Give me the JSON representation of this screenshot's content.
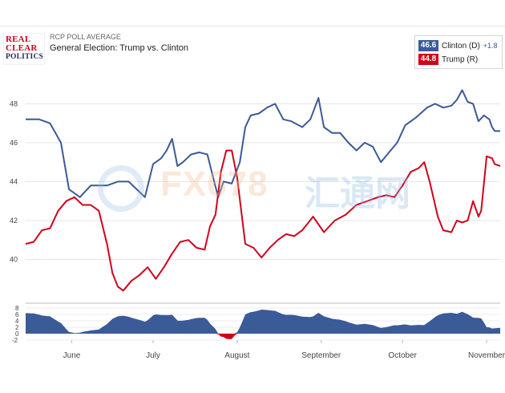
{
  "header": {
    "logo_lines": [
      "REAL",
      "CLEAR",
      "POLITICS"
    ],
    "subtitle": "RCP POLL AVERAGE",
    "title": "General Election: Trump vs. Clinton"
  },
  "legend": {
    "clinton": {
      "value": "46.6",
      "label": "Clinton (D)",
      "diff": "+1.8",
      "color": "#3b5a98"
    },
    "trump": {
      "value": "44.8",
      "label": "Trump (R)",
      "color": "#d0021b"
    }
  },
  "watermark": {
    "left": "FX678",
    "right": "汇通网"
  },
  "chart_data": {
    "type": "line",
    "title": "General Election: Trump vs. Clinton",
    "xlabel": "",
    "ylabel": "",
    "ylim": [
      38,
      49.5
    ],
    "yticks": [
      40,
      42,
      44,
      46,
      48
    ],
    "x_domain": [
      "2016-05-15",
      "2016-11-06"
    ],
    "month_labels": [
      {
        "label": "June",
        "date": "2016-06-01"
      },
      {
        "label": "July",
        "date": "2016-07-01"
      },
      {
        "label": "August",
        "date": "2016-08-01"
      },
      {
        "label": "September",
        "date": "2016-09-01"
      },
      {
        "label": "October",
        "date": "2016-10-01"
      },
      {
        "label": "November",
        "date": "2016-11-01"
      }
    ],
    "grid": true,
    "series": [
      {
        "name": "Clinton (D)",
        "color": "#3b5a98",
        "points": [
          [
            "2016-05-15",
            47.2
          ],
          [
            "2016-05-20",
            47.2
          ],
          [
            "2016-05-24",
            47.0
          ],
          [
            "2016-05-28",
            46.0
          ],
          [
            "2016-05-31",
            43.6
          ],
          [
            "2016-06-04",
            43.2
          ],
          [
            "2016-06-08",
            43.8
          ],
          [
            "2016-06-14",
            43.8
          ],
          [
            "2016-06-18",
            44.0
          ],
          [
            "2016-06-22",
            44.0
          ],
          [
            "2016-06-25",
            43.6
          ],
          [
            "2016-06-28",
            43.2
          ],
          [
            "2016-07-01",
            44.9
          ],
          [
            "2016-07-04",
            45.2
          ],
          [
            "2016-07-06",
            45.6
          ],
          [
            "2016-07-08",
            46.2
          ],
          [
            "2016-07-10",
            44.8
          ],
          [
            "2016-07-12",
            45.0
          ],
          [
            "2016-07-15",
            45.4
          ],
          [
            "2016-07-18",
            45.5
          ],
          [
            "2016-07-21",
            45.4
          ],
          [
            "2016-07-23",
            44.3
          ],
          [
            "2016-07-25",
            43.2
          ],
          [
            "2016-07-27",
            44.0
          ],
          [
            "2016-07-30",
            43.9
          ],
          [
            "2016-08-02",
            45.0
          ],
          [
            "2016-08-04",
            46.8
          ],
          [
            "2016-08-06",
            47.4
          ],
          [
            "2016-08-09",
            47.5
          ],
          [
            "2016-08-12",
            47.8
          ],
          [
            "2016-08-15",
            48.0
          ],
          [
            "2016-08-18",
            47.2
          ],
          [
            "2016-08-21",
            47.1
          ],
          [
            "2016-08-25",
            46.8
          ],
          [
            "2016-08-28",
            47.2
          ],
          [
            "2016-08-31",
            48.3
          ],
          [
            "2016-09-02",
            46.8
          ],
          [
            "2016-09-05",
            46.5
          ],
          [
            "2016-09-08",
            46.5
          ],
          [
            "2016-09-11",
            46.0
          ],
          [
            "2016-09-14",
            45.6
          ],
          [
            "2016-09-17",
            46.0
          ],
          [
            "2016-09-20",
            45.8
          ],
          [
            "2016-09-23",
            45.0
          ],
          [
            "2016-09-26",
            45.5
          ],
          [
            "2016-09-29",
            46.0
          ],
          [
            "2016-10-02",
            46.9
          ],
          [
            "2016-10-06",
            47.3
          ],
          [
            "2016-10-10",
            47.8
          ],
          [
            "2016-10-13",
            48.0
          ],
          [
            "2016-10-16",
            47.8
          ],
          [
            "2016-10-19",
            47.9
          ],
          [
            "2016-10-21",
            48.2
          ],
          [
            "2016-10-23",
            48.7
          ],
          [
            "2016-10-25",
            48.1
          ],
          [
            "2016-10-27",
            48.0
          ],
          [
            "2016-10-29",
            47.1
          ],
          [
            "2016-10-31",
            47.4
          ],
          [
            "2016-11-02",
            47.2
          ],
          [
            "2016-11-03",
            46.8
          ],
          [
            "2016-11-04",
            46.6
          ],
          [
            "2016-11-06",
            46.6
          ]
        ]
      },
      {
        "name": "Trump (R)",
        "color": "#d0021b",
        "points": [
          [
            "2016-05-15",
            40.8
          ],
          [
            "2016-05-18",
            40.9
          ],
          [
            "2016-05-21",
            41.5
          ],
          [
            "2016-05-24",
            41.6
          ],
          [
            "2016-05-27",
            42.5
          ],
          [
            "2016-05-30",
            43.0
          ],
          [
            "2016-06-02",
            43.2
          ],
          [
            "2016-06-05",
            42.8
          ],
          [
            "2016-06-08",
            42.8
          ],
          [
            "2016-06-11",
            42.5
          ],
          [
            "2016-06-14",
            40.8
          ],
          [
            "2016-06-16",
            39.3
          ],
          [
            "2016-06-18",
            38.6
          ],
          [
            "2016-06-20",
            38.4
          ],
          [
            "2016-06-23",
            38.9
          ],
          [
            "2016-06-26",
            39.2
          ],
          [
            "2016-06-29",
            39.6
          ],
          [
            "2016-07-02",
            39.0
          ],
          [
            "2016-07-05",
            39.6
          ],
          [
            "2016-07-08",
            40.3
          ],
          [
            "2016-07-11",
            40.9
          ],
          [
            "2016-07-14",
            41.0
          ],
          [
            "2016-07-17",
            40.6
          ],
          [
            "2016-07-20",
            40.5
          ],
          [
            "2016-07-22",
            41.7
          ],
          [
            "2016-07-24",
            42.3
          ],
          [
            "2016-07-26",
            44.5
          ],
          [
            "2016-07-28",
            45.6
          ],
          [
            "2016-07-30",
            45.6
          ],
          [
            "2016-08-01",
            44.2
          ],
          [
            "2016-08-04",
            40.8
          ],
          [
            "2016-08-07",
            40.6
          ],
          [
            "2016-08-10",
            40.1
          ],
          [
            "2016-08-13",
            40.6
          ],
          [
            "2016-08-16",
            41.0
          ],
          [
            "2016-08-19",
            41.3
          ],
          [
            "2016-08-22",
            41.2
          ],
          [
            "2016-08-25",
            41.5
          ],
          [
            "2016-08-29",
            42.2
          ],
          [
            "2016-09-02",
            41.4
          ],
          [
            "2016-09-06",
            42.0
          ],
          [
            "2016-09-10",
            42.3
          ],
          [
            "2016-09-14",
            42.8
          ],
          [
            "2016-09-18",
            43.0
          ],
          [
            "2016-09-22",
            43.2
          ],
          [
            "2016-09-25",
            43.3
          ],
          [
            "2016-09-28",
            43.2
          ],
          [
            "2016-10-01",
            43.8
          ],
          [
            "2016-10-04",
            44.5
          ],
          [
            "2016-10-07",
            44.7
          ],
          [
            "2016-10-09",
            45.0
          ],
          [
            "2016-10-11",
            44.0
          ],
          [
            "2016-10-14",
            42.2
          ],
          [
            "2016-10-16",
            41.5
          ],
          [
            "2016-10-19",
            41.4
          ],
          [
            "2016-10-21",
            42.0
          ],
          [
            "2016-10-23",
            41.9
          ],
          [
            "2016-10-25",
            42.0
          ],
          [
            "2016-10-27",
            43.0
          ],
          [
            "2016-10-29",
            42.2
          ],
          [
            "2016-10-30",
            42.5
          ],
          [
            "2016-11-01",
            45.3
          ],
          [
            "2016-11-03",
            45.2
          ],
          [
            "2016-11-04",
            44.9
          ],
          [
            "2016-11-06",
            44.8
          ]
        ]
      }
    ],
    "spread_panel": {
      "type": "area",
      "ylim": [
        -2,
        8
      ],
      "yticks": [
        8,
        6,
        4,
        2,
        0,
        -2
      ],
      "positive_color": "#3b5a98",
      "negative_color": "#d0021b",
      "note": "Clinton minus Trump spread"
    }
  }
}
